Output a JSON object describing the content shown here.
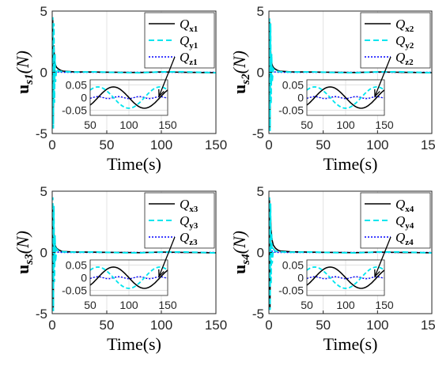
{
  "chart_data": [
    {
      "type": "line",
      "panel": "1",
      "ylabel_main": "u",
      "ylabel_sub": "s1",
      "ylabel_unit": "(N)",
      "xlabel": "Time(s)",
      "xlim": [
        0,
        150
      ],
      "ylim": [
        -5,
        5
      ],
      "xticks": [
        "0",
        "50",
        "100",
        "150"
      ],
      "yticks": [
        "5",
        "0",
        "-5"
      ],
      "grid": true,
      "legend_position": "top-right",
      "colors": {
        "Qx": "#000000",
        "Qy": "#00e5ee",
        "Qz": "#0000ff"
      },
      "series": [
        {
          "name": "Qx1",
          "legend_main": "Q",
          "legend_sub": "x1",
          "x": [
            0,
            0.5,
            1,
            1.5,
            2,
            3,
            4,
            6,
            8,
            10,
            20,
            40,
            60,
            80,
            100,
            120,
            150
          ],
          "values": [
            0,
            4.3,
            -4.2,
            2.2,
            1.0,
            0.6,
            0.4,
            0.25,
            0.15,
            0.1,
            0.04,
            0.02,
            0.0,
            -0.02,
            0.03,
            0.0,
            -0.03
          ]
        },
        {
          "name": "Qy1",
          "legend_main": "Q",
          "legend_sub": "y1",
          "x": [
            0,
            0.5,
            1,
            1.5,
            2,
            2.5,
            3,
            4,
            6,
            10,
            20,
            40,
            60,
            80,
            100,
            120,
            150
          ],
          "values": [
            0,
            4.5,
            -4.6,
            4.0,
            -2.5,
            1.5,
            -0.8,
            0.3,
            0.1,
            0.05,
            0.02,
            0.03,
            -0.02,
            -0.04,
            0.03,
            0.04,
            -0.04
          ]
        },
        {
          "name": "Qz1",
          "legend_main": "Q",
          "legend_sub": "z1",
          "x": [
            0,
            0.5,
            1,
            1.5,
            2,
            3,
            5,
            10,
            20,
            150
          ],
          "values": [
            0,
            0.4,
            -0.5,
            0.3,
            -0.2,
            0.1,
            0.03,
            0.0,
            0.0,
            0.0
          ]
        }
      ],
      "inset": {
        "xlim": [
          50,
          150
        ],
        "ylim": [
          -0.07,
          0.07
        ],
        "xticks": [
          "50",
          "100",
          "150"
        ],
        "yticks": [
          "0.05",
          "0",
          "-0.05"
        ]
      }
    },
    {
      "type": "line",
      "panel": "2",
      "ylabel_main": "u",
      "ylabel_sub": "s2",
      "ylabel_unit": "(N)",
      "xlabel": "Time(s)",
      "xlim": [
        0,
        150
      ],
      "ylim": [
        -5,
        5
      ],
      "xticks": [
        "0",
        "50",
        "100",
        "150"
      ],
      "yticks": [
        "5",
        "0",
        "-5"
      ],
      "grid": true,
      "legend_position": "top-right",
      "colors": {
        "Qx": "#000000",
        "Qy": "#00e5ee",
        "Qz": "#0000ff"
      },
      "series": [
        {
          "name": "Qx2",
          "legend_main": "Q",
          "legend_sub": "x2",
          "x": [
            0,
            0.5,
            1,
            1.5,
            2,
            3,
            4,
            6,
            8,
            10,
            20,
            40,
            60,
            80,
            100,
            120,
            150
          ],
          "values": [
            0,
            4.3,
            -4.5,
            2.0,
            1.0,
            0.6,
            0.4,
            0.25,
            0.15,
            0.1,
            0.04,
            0.02,
            0.0,
            -0.02,
            0.03,
            0.0,
            -0.03
          ]
        },
        {
          "name": "Qy2",
          "legend_main": "Q",
          "legend_sub": "y2",
          "x": [
            0,
            0.5,
            1,
            1.5,
            2,
            2.5,
            3,
            4,
            6,
            10,
            20,
            40,
            60,
            80,
            100,
            120,
            150
          ],
          "values": [
            0,
            4.4,
            -4.8,
            4.0,
            -2.6,
            1.5,
            -0.8,
            0.3,
            0.1,
            0.05,
            0.02,
            0.03,
            -0.02,
            -0.04,
            0.03,
            0.04,
            -0.04
          ]
        },
        {
          "name": "Qz2",
          "legend_main": "Q",
          "legend_sub": "z2",
          "x": [
            0,
            0.5,
            1,
            1.5,
            2,
            3,
            5,
            10,
            20,
            150
          ],
          "values": [
            0,
            0.4,
            -0.5,
            0.3,
            -0.2,
            0.1,
            0.03,
            0.0,
            0.0,
            0.0
          ]
        }
      ],
      "inset": {
        "xlim": [
          50,
          150
        ],
        "ylim": [
          -0.07,
          0.07
        ],
        "xticks": [
          "50",
          "100",
          "150"
        ],
        "yticks": [
          "0.05",
          "0",
          "-0.05"
        ]
      }
    },
    {
      "type": "line",
      "panel": "3",
      "ylabel_main": "u",
      "ylabel_sub": "s3",
      "ylabel_unit": "(N)",
      "xlabel": "Time(s)",
      "xlim": [
        0,
        150
      ],
      "ylim": [
        -5,
        5
      ],
      "xticks": [
        "0",
        "50",
        "100",
        "150"
      ],
      "yticks": [
        "5",
        "0",
        "-5"
      ],
      "grid": true,
      "legend_position": "top-right",
      "colors": {
        "Qx": "#000000",
        "Qy": "#00e5ee",
        "Qz": "#0000ff"
      },
      "series": [
        {
          "name": "Qx3",
          "legend_main": "Q",
          "legend_sub": "x3",
          "x": [
            0,
            0.5,
            1,
            1.5,
            2,
            3,
            4,
            6,
            8,
            10,
            20,
            40,
            60,
            80,
            100,
            120,
            150
          ],
          "values": [
            0,
            3.5,
            -4.5,
            1.8,
            0.9,
            0.5,
            0.35,
            0.2,
            0.12,
            0.08,
            0.04,
            0.02,
            0.0,
            -0.02,
            0.03,
            0.0,
            -0.03
          ]
        },
        {
          "name": "Qy3",
          "legend_main": "Q",
          "legend_sub": "y3",
          "x": [
            0,
            0.5,
            1,
            1.5,
            2,
            2.5,
            3,
            4,
            6,
            10,
            20,
            40,
            60,
            80,
            100,
            120,
            150
          ],
          "values": [
            0,
            4.5,
            -4.8,
            3.8,
            -2.4,
            1.4,
            -0.8,
            0.3,
            0.1,
            0.05,
            0.02,
            0.03,
            -0.02,
            -0.04,
            0.03,
            0.04,
            -0.04
          ]
        },
        {
          "name": "Qz3",
          "legend_main": "Q",
          "legend_sub": "z3",
          "x": [
            0,
            0.5,
            1,
            1.5,
            2,
            3,
            5,
            10,
            20,
            150
          ],
          "values": [
            0,
            0.4,
            -0.5,
            0.3,
            -0.2,
            0.1,
            0.03,
            0.0,
            0.0,
            0.0
          ]
        }
      ],
      "inset": {
        "xlim": [
          50,
          150
        ],
        "ylim": [
          -0.07,
          0.07
        ],
        "xticks": [
          "50",
          "100",
          "150"
        ],
        "yticks": [
          "0.05",
          "0",
          "-0.05"
        ]
      }
    },
    {
      "type": "line",
      "panel": "4",
      "ylabel_main": "u",
      "ylabel_sub": "s4",
      "ylabel_unit": "(N)",
      "xlabel": "Time(s)",
      "xlim": [
        0,
        150
      ],
      "ylim": [
        -5,
        5
      ],
      "xticks": [
        "0",
        "50",
        "100",
        "150"
      ],
      "yticks": [
        "5",
        "0",
        "-5"
      ],
      "grid": true,
      "legend_position": "top-right",
      "colors": {
        "Qx": "#000000",
        "Qy": "#00e5ee",
        "Qz": "#0000ff"
      },
      "series": [
        {
          "name": "Qx4",
          "legend_main": "Q",
          "legend_sub": "x4",
          "x": [
            0,
            0.5,
            1,
            1.5,
            2,
            3,
            4,
            6,
            8,
            10,
            20,
            40,
            60,
            80,
            100,
            120,
            150
          ],
          "values": [
            0,
            4.4,
            -4.6,
            3.0,
            1.8,
            1.0,
            0.6,
            0.35,
            0.2,
            0.12,
            0.05,
            0.02,
            0.0,
            -0.02,
            0.03,
            0.0,
            -0.03
          ]
        },
        {
          "name": "Qy4",
          "legend_main": "Q",
          "legend_sub": "y4",
          "x": [
            0,
            0.5,
            1,
            1.5,
            2,
            2.5,
            3,
            4,
            6,
            10,
            20,
            40,
            60,
            80,
            100,
            120,
            150
          ],
          "values": [
            0,
            4.5,
            -4.7,
            4.0,
            -2.6,
            1.6,
            -0.9,
            0.3,
            0.1,
            0.05,
            0.02,
            0.03,
            -0.02,
            -0.04,
            0.03,
            0.04,
            -0.04
          ]
        },
        {
          "name": "Qz4",
          "legend_main": "Q",
          "legend_sub": "z4",
          "x": [
            0,
            0.5,
            1,
            1.5,
            2,
            3,
            5,
            10,
            20,
            150
          ],
          "values": [
            0,
            0.4,
            -0.5,
            0.3,
            -0.2,
            0.1,
            0.03,
            0.0,
            0.0,
            0.0
          ]
        }
      ],
      "inset": {
        "xlim": [
          50,
          150
        ],
        "ylim": [
          -0.07,
          0.07
        ],
        "xticks": [
          "50",
          "100",
          "150"
        ],
        "yticks": [
          "0.05",
          "0",
          "-0.05"
        ]
      }
    }
  ]
}
